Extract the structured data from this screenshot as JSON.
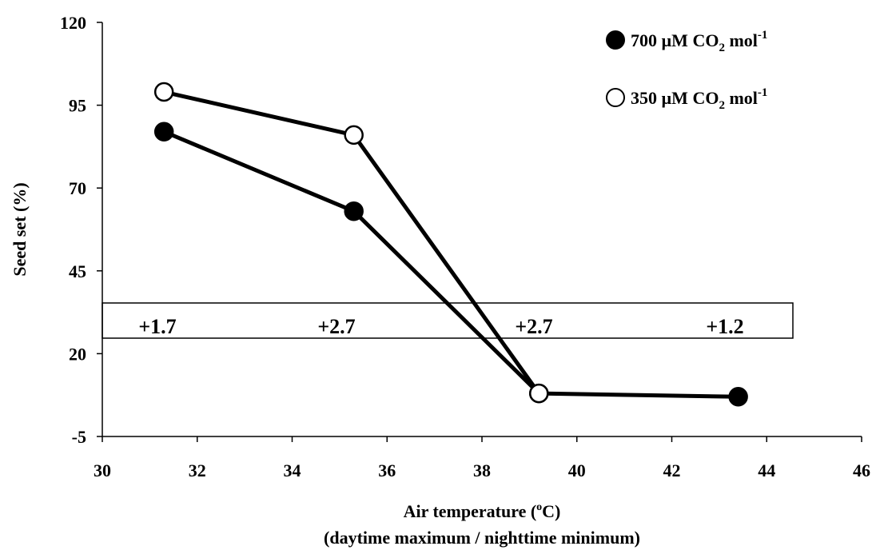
{
  "chart_data": {
    "type": "line",
    "xlabel_line1": "Air temperature (",
    "xlabel_sup": "o",
    "xlabel_line1_end": "C)",
    "xlabel_line2": "(daytime maximum / nighttime minimum)",
    "ylabel": "Seed set (%)",
    "xlim": [
      30,
      46
    ],
    "ylim": [
      -5,
      120
    ],
    "x_ticks": [
      "30",
      "32",
      "34",
      "36",
      "38",
      "40",
      "42",
      "44",
      "46"
    ],
    "y_ticks": [
      "-5",
      "20",
      "45",
      "70",
      "95",
      "120"
    ],
    "grid": false,
    "legend_position": "top-right",
    "series": [
      {
        "name_prefix": "700 µM CO",
        "name_sub": "2",
        "name_mid": " mol",
        "name_sup": "-1",
        "marker": "filled-circle",
        "color": "#000000",
        "x": [
          31.3,
          35.3,
          39.2,
          43.4
        ],
        "y": [
          87,
          63,
          8,
          7
        ]
      },
      {
        "name_prefix": "350 µM CO",
        "name_sub": "2",
        "name_mid": " mol",
        "name_sup": "-1",
        "marker": "open-circle",
        "color": "#000000",
        "x": [
          31.3,
          35.3,
          39.2
        ],
        "y": [
          99,
          86,
          8
        ]
      }
    ],
    "annotations": [
      "+1.7",
      "+2.7",
      "+2.7",
      "+1.2"
    ]
  }
}
